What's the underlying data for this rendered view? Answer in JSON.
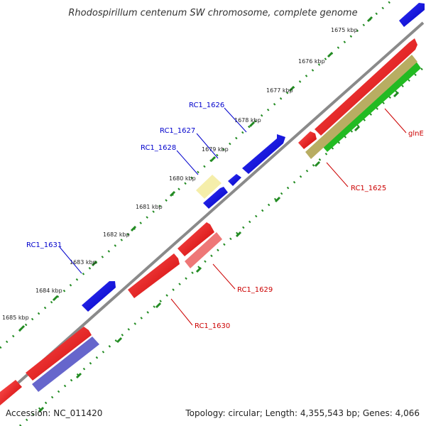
{
  "title": "Rhodospirillum centenum SW chromosome, complete genome",
  "footer": {
    "accession": "Accession: NC_011420",
    "summary": "Topology: circular; Length: 4,355,543 bp; Genes: 4,066"
  },
  "ticks": [
    "1675 kbp",
    "1676 kbp",
    "1677 kbp",
    "1678 kbp",
    "1679 kbp",
    "1680 kbp",
    "1681 kbp",
    "1682 kbp",
    "1683 kbp",
    "1684 kbp",
    "1685 kbp"
  ],
  "gene_labels": {
    "rc1_1626": "RC1_1626",
    "rc1_1627": "RC1_1627",
    "rc1_1628": "RC1_1628",
    "rc1_1631": "RC1_1631",
    "glne": "glnE",
    "rc1_1625": "RC1_1625",
    "rc1_1629": "RC1_1629",
    "rc1_1630": "RC1_1630"
  },
  "colors": {
    "forward_gene": "#0000dd",
    "reverse_gene": "#ee0000",
    "backbone": "#8a8a8a",
    "tick_dots": "#228b22"
  }
}
